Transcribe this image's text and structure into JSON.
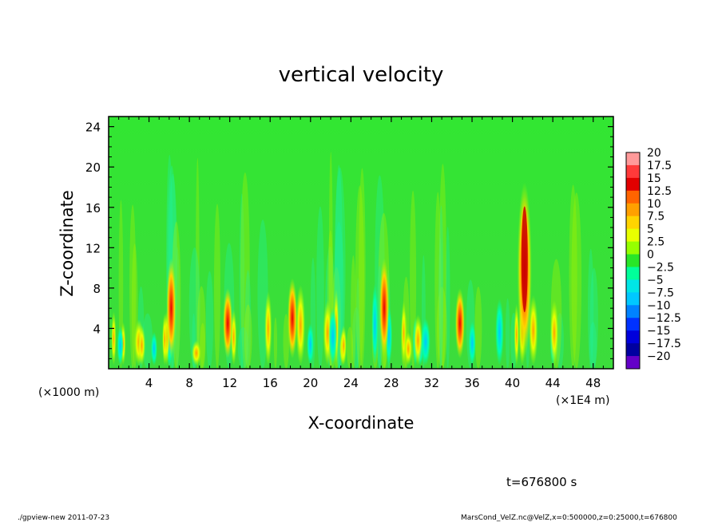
{
  "chart_data": {
    "type": "heatmap",
    "title": "vertical velocity",
    "xlabel": "X-coordinate",
    "ylabel": "Z-coordinate",
    "x_unit_left": "(×1000 m)",
    "x_unit_right": "(×1E4 m)",
    "xlim": [
      0,
      50
    ],
    "ylim": [
      0,
      25
    ],
    "x_ticks": [
      "4",
      "8",
      "12",
      "16",
      "20",
      "24",
      "28",
      "32",
      "36",
      "40",
      "44",
      "48"
    ],
    "x_tick_values": [
      4,
      8,
      12,
      16,
      20,
      24,
      28,
      32,
      36,
      40,
      44,
      48
    ],
    "y_ticks": [
      "4",
      "8",
      "12",
      "16",
      "20",
      "24"
    ],
    "y_tick_values": [
      4,
      8,
      12,
      16,
      20,
      24
    ],
    "colorbar": {
      "labels": [
        "20",
        "17.5",
        "15",
        "12.5",
        "10",
        "7.5",
        "5",
        "2.5",
        "0",
        "−2.5",
        "−5",
        "−7.5",
        "−10",
        "−12.5",
        "−15",
        "−17.5",
        "−20"
      ],
      "colors": [
        "#ff9a9a",
        "#ff3a3a",
        "#e10000",
        "#ff6400",
        "#ffa000",
        "#ffd400",
        "#e8ff00",
        "#96ff00",
        "#28e628",
        "#00ff9a",
        "#00e6e6",
        "#00c8ff",
        "#0082ff",
        "#0032ff",
        "#0000dc",
        "#0000a0",
        "#6400c8"
      ]
    },
    "features": [
      {
        "x": 41.2,
        "z_top": 17.5,
        "peak": 17,
        "note": "strong updraft column"
      },
      {
        "x": 6.2,
        "z_top": 10,
        "peak": 12
      },
      {
        "x": 11.8,
        "z_top": 7,
        "peak": 11
      },
      {
        "x": 18.2,
        "z_top": 8,
        "peak": 10
      },
      {
        "x": 27.3,
        "z_top": 10,
        "peak": 12
      },
      {
        "x": 34.8,
        "z_top": 7,
        "peak": 10
      }
    ]
  },
  "time_label": "t=676800 s",
  "footer": {
    "left": "./gpview-new   2011-07-23",
    "right": "MarsCond_VelZ.nc@VelZ,x=0:500000,z=0:25000,t=676800"
  }
}
